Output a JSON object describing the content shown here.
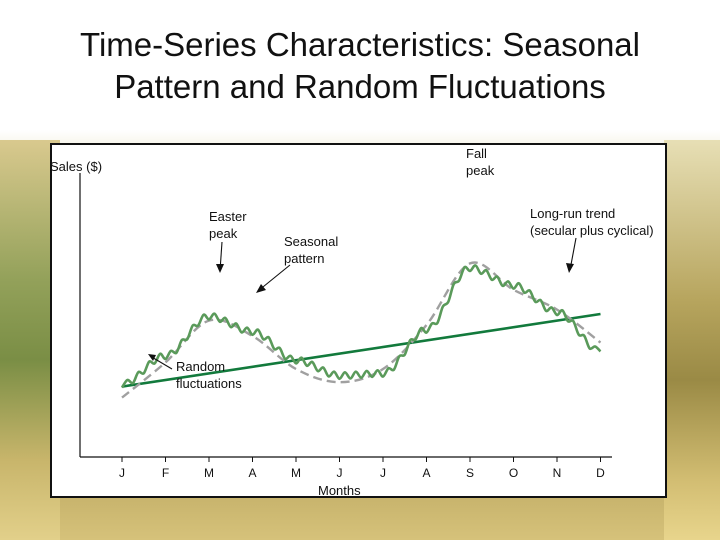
{
  "slide": {
    "title_line1": "Time-Series Characteristics: Seasonal",
    "title_line2": "Pattern and Random Fluctuations"
  },
  "chart_data": {
    "type": "line",
    "ylabel": "Sales ($)",
    "xlabel": "Months",
    "categories": [
      "J",
      "F",
      "M",
      "A",
      "M",
      "J",
      "J",
      "A",
      "S",
      "O",
      "N",
      "D"
    ],
    "series": [
      {
        "name": "Long-run trend (secular plus cyclical)",
        "style": "solid",
        "values": [
          32,
          35,
          38,
          41,
          44,
          47,
          50,
          53,
          56,
          59,
          62,
          65
        ]
      },
      {
        "name": "Seasonal pattern",
        "style": "dashed",
        "values": [
          27,
          43,
          62,
          55,
          40,
          34,
          40,
          60,
          88,
          76,
          67,
          52
        ]
      },
      {
        "name": "Random fluctuations",
        "style": "wavy",
        "values": [
          33,
          46,
          64,
          57,
          44,
          37,
          38,
          58,
          86,
          78,
          66,
          48
        ]
      }
    ],
    "annotations": {
      "fall_peak": [
        "Fall",
        "peak"
      ],
      "easter_peak": [
        "Easter",
        "peak"
      ],
      "seasonal_pattern": [
        "Seasonal",
        "pattern"
      ],
      "long_run_trend": [
        "Long-run trend",
        "(secular plus cyclical)"
      ],
      "random_fluctuations": [
        "Random",
        "fluctuations"
      ]
    },
    "colors": {
      "trend": "#127a3c",
      "seasonal": "#a0a0a0",
      "random": "#5a9a5a"
    }
  }
}
